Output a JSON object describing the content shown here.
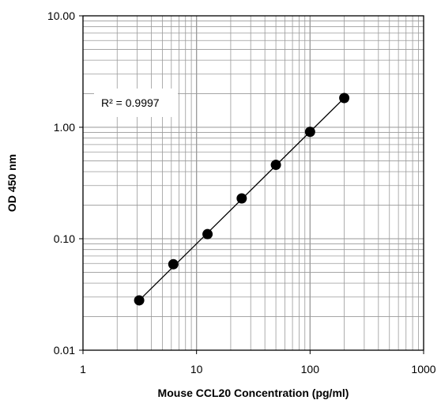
{
  "chart_data": {
    "type": "scatter",
    "xlabel": "Mouse CCL20 Concentration (pg/ml)",
    "ylabel": "OD 450 nm",
    "x_scale": "log",
    "y_scale": "log",
    "xlim": [
      1,
      1000
    ],
    "ylim": [
      0.01,
      10
    ],
    "x_ticks": [
      "1",
      "10",
      "100",
      "1000"
    ],
    "y_ticks": [
      "0.01",
      "0.10",
      "1.00",
      "10.00"
    ],
    "grid": "major and minor",
    "annotation": {
      "text": "R² = 0.9997"
    },
    "series": [
      {
        "x": [
          3.125,
          6.25,
          12.5,
          25,
          50,
          100,
          200
        ],
        "y": [
          0.028,
          0.059,
          0.11,
          0.23,
          0.46,
          0.91,
          1.83
        ]
      }
    ],
    "trendline": {
      "from": [
        3.125,
        0.028
      ],
      "to": [
        200,
        1.83
      ]
    },
    "colors": {
      "grid": "#9a9a9a",
      "frame": "#000000",
      "marker": "#000000",
      "line": "#000000"
    }
  }
}
